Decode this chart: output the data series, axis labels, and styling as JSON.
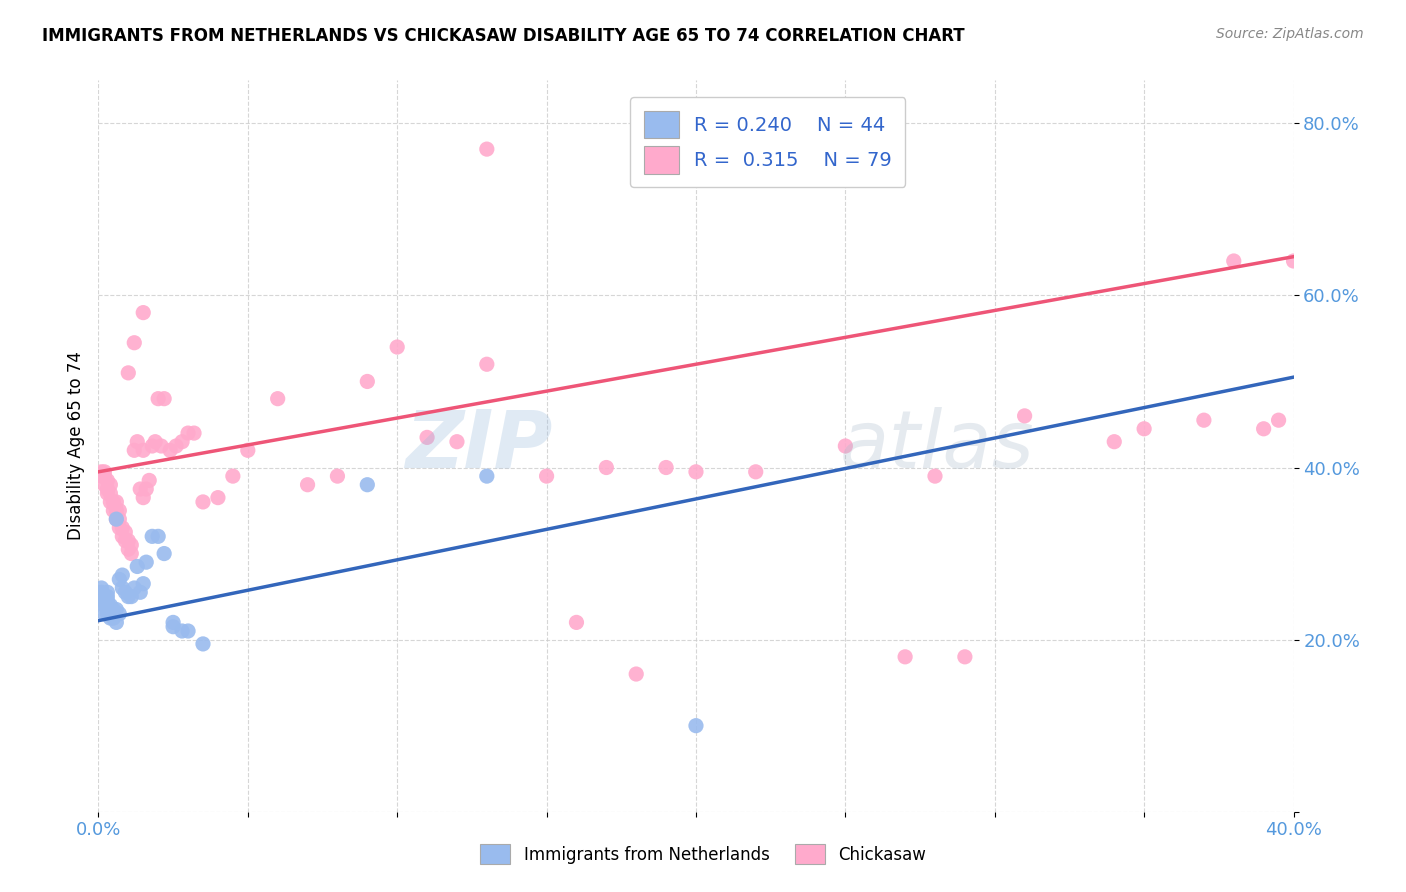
{
  "title": "IMMIGRANTS FROM NETHERLANDS VS CHICKASAW DISABILITY AGE 65 TO 74 CORRELATION CHART",
  "source": "Source: ZipAtlas.com",
  "ylabel": "Disability Age 65 to 74",
  "x_min": 0.0,
  "x_max": 0.4,
  "y_min": 0.0,
  "y_max": 0.85,
  "legend_blue_R": "0.240",
  "legend_blue_N": "44",
  "legend_pink_R": "0.315",
  "legend_pink_N": "79",
  "legend_label_blue": "Immigrants from Netherlands",
  "legend_label_pink": "Chickasaw",
  "blue_color": "#99BBEE",
  "pink_color": "#FFAACC",
  "blue_line_color": "#3366BB",
  "pink_line_color": "#EE5577",
  "watermark": "ZIPatlas",
  "blue_line_x0": 0.0,
  "blue_line_y0": 0.222,
  "blue_line_x1": 0.4,
  "blue_line_y1": 0.505,
  "pink_line_x0": 0.0,
  "pink_line_y0": 0.395,
  "pink_line_x1": 0.4,
  "pink_line_y1": 0.645,
  "blue_scatter_x": [
    0.001,
    0.001,
    0.001,
    0.001,
    0.002,
    0.002,
    0.002,
    0.002,
    0.003,
    0.003,
    0.003,
    0.003,
    0.003,
    0.004,
    0.004,
    0.005,
    0.005,
    0.005,
    0.006,
    0.006,
    0.006,
    0.007,
    0.007,
    0.008,
    0.008,
    0.009,
    0.01,
    0.011,
    0.012,
    0.013,
    0.014,
    0.015,
    0.016,
    0.018,
    0.02,
    0.022,
    0.025,
    0.025,
    0.028,
    0.03,
    0.035,
    0.09,
    0.13,
    0.2
  ],
  "blue_scatter_y": [
    0.245,
    0.25,
    0.255,
    0.26,
    0.23,
    0.24,
    0.245,
    0.25,
    0.23,
    0.235,
    0.245,
    0.25,
    0.255,
    0.225,
    0.24,
    0.225,
    0.23,
    0.235,
    0.22,
    0.235,
    0.34,
    0.23,
    0.27,
    0.26,
    0.275,
    0.255,
    0.25,
    0.25,
    0.26,
    0.285,
    0.255,
    0.265,
    0.29,
    0.32,
    0.32,
    0.3,
    0.215,
    0.22,
    0.21,
    0.21,
    0.195,
    0.38,
    0.39,
    0.1
  ],
  "pink_scatter_x": [
    0.001,
    0.001,
    0.002,
    0.002,
    0.002,
    0.003,
    0.003,
    0.003,
    0.004,
    0.004,
    0.004,
    0.005,
    0.005,
    0.006,
    0.006,
    0.006,
    0.007,
    0.007,
    0.007,
    0.008,
    0.008,
    0.009,
    0.009,
    0.01,
    0.01,
    0.011,
    0.011,
    0.012,
    0.013,
    0.014,
    0.015,
    0.015,
    0.016,
    0.017,
    0.018,
    0.019,
    0.02,
    0.021,
    0.022,
    0.024,
    0.026,
    0.028,
    0.03,
    0.032,
    0.035,
    0.04,
    0.045,
    0.05,
    0.06,
    0.07,
    0.08,
    0.09,
    0.1,
    0.11,
    0.12,
    0.13,
    0.15,
    0.17,
    0.19,
    0.2,
    0.22,
    0.25,
    0.28,
    0.31,
    0.35,
    0.37,
    0.38,
    0.39,
    0.395,
    0.01,
    0.012,
    0.015,
    0.4,
    0.16,
    0.18,
    0.13,
    0.27,
    0.29,
    0.34
  ],
  "pink_scatter_y": [
    0.39,
    0.395,
    0.38,
    0.39,
    0.395,
    0.37,
    0.375,
    0.385,
    0.36,
    0.37,
    0.38,
    0.35,
    0.36,
    0.34,
    0.35,
    0.36,
    0.33,
    0.34,
    0.35,
    0.32,
    0.33,
    0.315,
    0.325,
    0.305,
    0.315,
    0.3,
    0.31,
    0.42,
    0.43,
    0.375,
    0.365,
    0.42,
    0.375,
    0.385,
    0.425,
    0.43,
    0.48,
    0.425,
    0.48,
    0.42,
    0.425,
    0.43,
    0.44,
    0.44,
    0.36,
    0.365,
    0.39,
    0.42,
    0.48,
    0.38,
    0.39,
    0.5,
    0.54,
    0.435,
    0.43,
    0.52,
    0.39,
    0.4,
    0.4,
    0.395,
    0.395,
    0.425,
    0.39,
    0.46,
    0.445,
    0.455,
    0.64,
    0.445,
    0.455,
    0.51,
    0.545,
    0.58,
    0.64,
    0.22,
    0.16,
    0.77,
    0.18,
    0.18,
    0.43
  ]
}
